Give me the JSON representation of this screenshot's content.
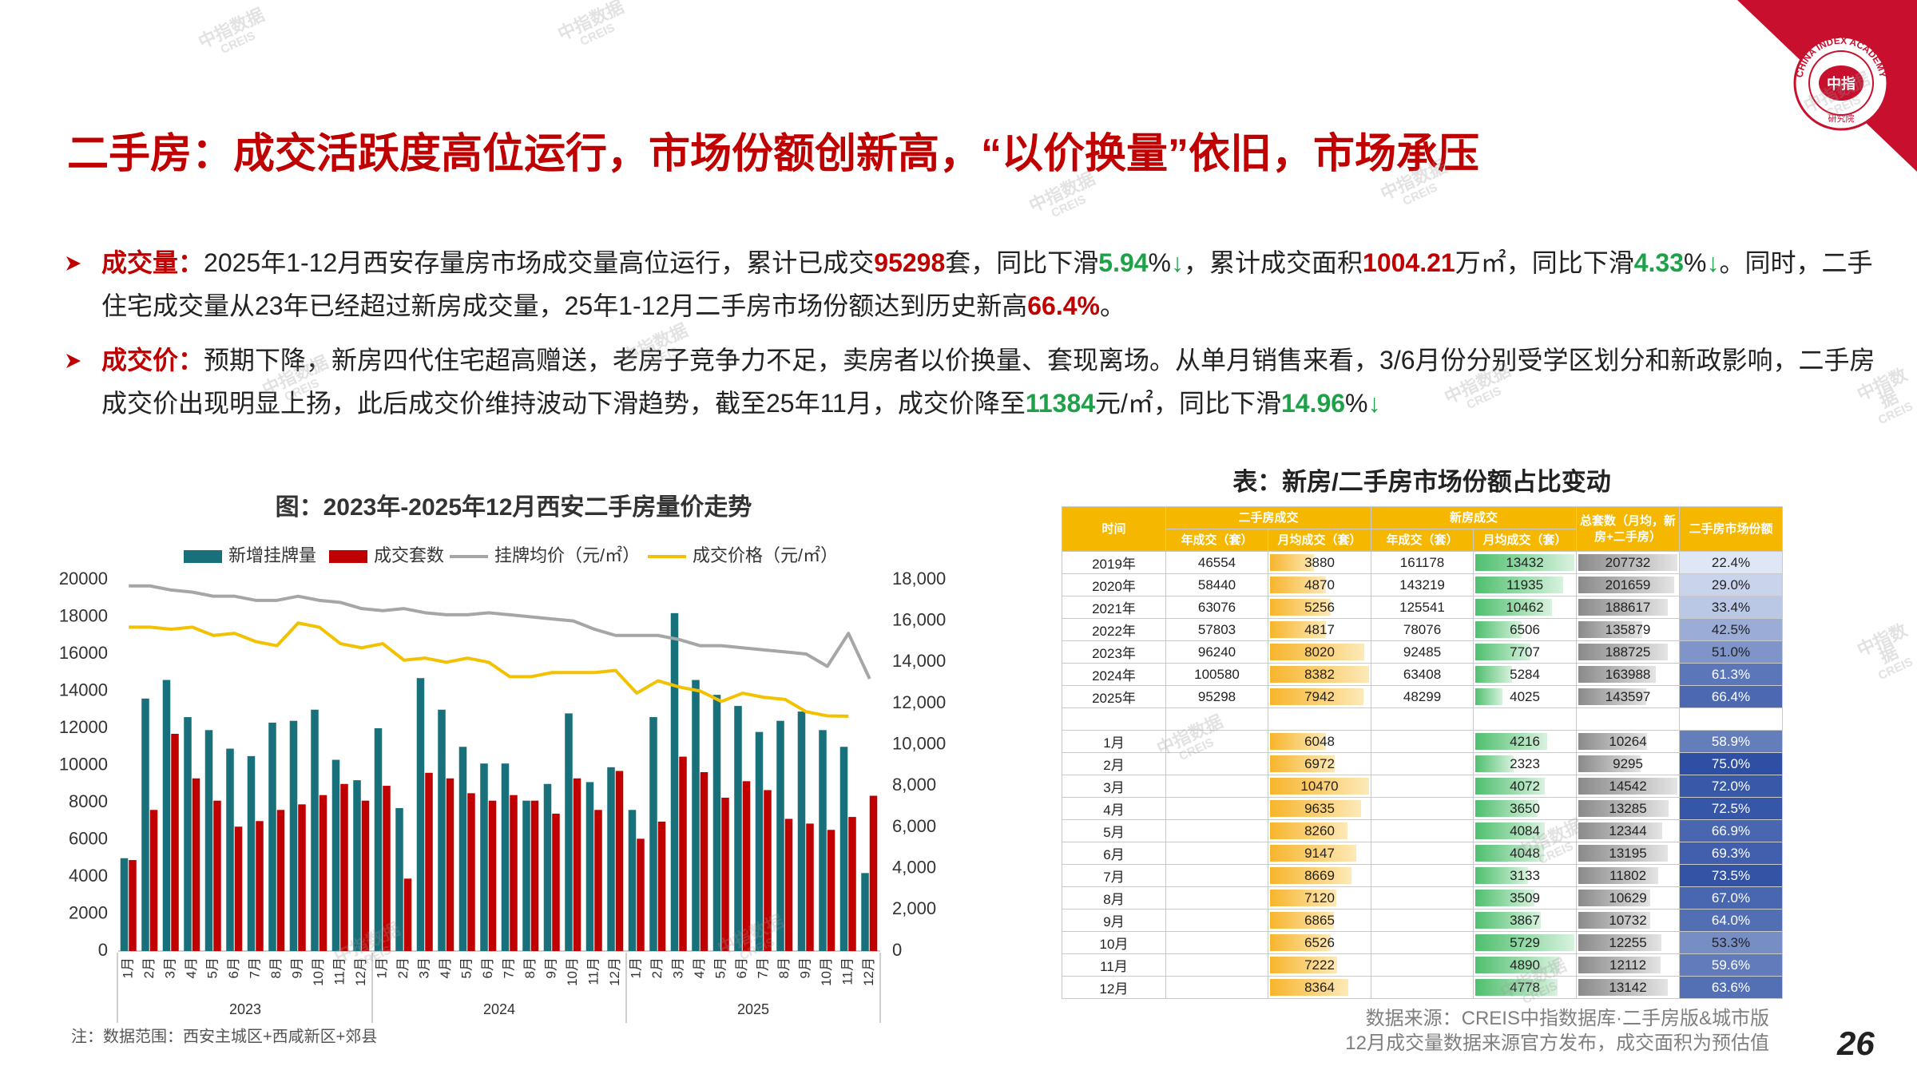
{
  "header": {
    "title": "二手房：成交活跃度高位运行，市场份额创新高，“以价换量”依旧，市场承压"
  },
  "logo": {
    "mark": "中指",
    "ring": "CHINA INDEX ACADEMY",
    "sub": "研究院"
  },
  "watermark": [
    "中指数据",
    "CREIS"
  ],
  "bullets": [
    {
      "label": "成交量：",
      "segments": [
        {
          "text": "2025年1-12月西安存量房市场成交量高位运行，累计已成交"
        },
        {
          "text": "95298",
          "emphasis": "red"
        },
        {
          "text": "套，同比下滑"
        },
        {
          "text": "5.94",
          "emphasis": "green"
        },
        {
          "text": "%"
        },
        {
          "text": "↓",
          "emphasis": "green"
        },
        {
          "text": "，累计成交面积"
        },
        {
          "text": "1004.21",
          "emphasis": "red"
        },
        {
          "text": "万㎡，同比下滑"
        },
        {
          "text": "4.33",
          "emphasis": "green"
        },
        {
          "text": "%"
        },
        {
          "text": "↓",
          "emphasis": "green"
        },
        {
          "text": "。同时，二手住宅成交量从23年已经超过新房成交量，25年1-12月二手房市场份额达到历史新高"
        },
        {
          "text": "66.4%",
          "emphasis": "red"
        },
        {
          "text": "。"
        }
      ]
    },
    {
      "label": "成交价：",
      "segments": [
        {
          "text": "预期下降，新房四代住宅超高赠送，老房子竞争力不足，卖房者以价换量、套现离场。从单月销售来看，3/6月份分别受学区划分和新政影响，二手房成交价出现明显上扬，此后成交价维持波动下滑趋势，截至25年11月，成交价降至"
        },
        {
          "text": "11384",
          "emphasis": "green"
        },
        {
          "text": "元/㎡，同比下滑"
        },
        {
          "text": "14.96",
          "emphasis": "green"
        },
        {
          "text": "%"
        },
        {
          "text": "↓",
          "emphasis": "green"
        }
      ]
    }
  ],
  "chart_data": {
    "type": "combo",
    "title": "图：2023年-2025年12月西安二手房量价走势",
    "categories": [
      "1月",
      "2月",
      "3月",
      "4月",
      "5月",
      "6月",
      "7月",
      "8月",
      "9月",
      "10月",
      "11月",
      "12月",
      "1月",
      "2月",
      "3月",
      "4月",
      "5月",
      "6月",
      "7月",
      "8月",
      "9月",
      "10月",
      "11月",
      "12月",
      "1月",
      "2月",
      "3月",
      "4月",
      "5月",
      "6月",
      "7月",
      "8月",
      "9月",
      "10月",
      "11月",
      "12月"
    ],
    "x_groups": [
      "2023",
      "2024",
      "2025"
    ],
    "ylim": [
      0,
      20000
    ],
    "yticks": [
      0,
      2000,
      4000,
      6000,
      8000,
      10000,
      12000,
      14000,
      16000,
      18000,
      20000
    ],
    "y2lim": [
      0,
      18000
    ],
    "y2ticks": [
      0,
      {
        "value": 2000,
        "label": "2,000"
      },
      {
        "value": 4000,
        "label": "4,000"
      },
      {
        "value": 6000,
        "label": "6,000"
      },
      {
        "value": 8000,
        "label": "8,000"
      },
      {
        "value": 10000,
        "label": "10,000"
      },
      {
        "value": 12000,
        "label": "12,000"
      },
      {
        "value": 14000,
        "label": "14,000"
      },
      {
        "value": 16000,
        "label": "16,000"
      },
      {
        "value": 18000,
        "label": "18,000"
      }
    ],
    "grid": false,
    "series": [
      {
        "name": "新增挂牌量",
        "type": "bar",
        "color": "#17707a",
        "values": [
          5000,
          13600,
          14600,
          12600,
          11900,
          10900,
          10500,
          12300,
          12400,
          13000,
          10300,
          9200,
          12000,
          7700,
          14700,
          13000,
          11000,
          10100,
          10100,
          8100,
          9000,
          12800,
          9100,
          9900,
          7600,
          12600,
          18200,
          14600,
          13800,
          13200,
          11800,
          12400,
          12900,
          11900,
          11000,
          4200
        ]
      },
      {
        "name": "成交套数",
        "type": "bar",
        "color": "#c00000",
        "values": [
          4900,
          7600,
          11700,
          9300,
          8100,
          6700,
          7000,
          7600,
          7900,
          8400,
          9000,
          8100,
          8900,
          3900,
          9600,
          9300,
          8500,
          8100,
          8400,
          8100,
          7400,
          9300,
          7600,
          9700,
          6048,
          6972,
          10470,
          9635,
          8260,
          9147,
          8669,
          7120,
          6865,
          6526,
          7222,
          8364
        ]
      },
      {
        "name": "挂牌均价（元/㎡）",
        "type": "line",
        "axis": "y2",
        "color": "#a6a6a6",
        "values": [
          17700,
          17700,
          17500,
          17400,
          17200,
          17200,
          17000,
          17000,
          17200,
          17000,
          16900,
          16600,
          16500,
          16600,
          16400,
          16300,
          16300,
          16400,
          16300,
          16200,
          16100,
          16000,
          15600,
          15300,
          15300,
          15300,
          15100,
          14800,
          14800,
          14700,
          14600,
          14500,
          14400,
          13800,
          15400,
          13200
        ]
      },
      {
        "name": "成交价格（元/㎡）",
        "type": "line",
        "axis": "y2",
        "color": "#f2c200",
        "values": [
          15700,
          15700,
          15600,
          15700,
          15300,
          15400,
          15000,
          14800,
          15900,
          15700,
          14900,
          14700,
          14900,
          14100,
          14200,
          14000,
          14200,
          14000,
          13300,
          13300,
          13500,
          13500,
          13500,
          13600,
          12500,
          13100,
          12800,
          12600,
          12100,
          12500,
          12300,
          12200,
          11600,
          11400,
          11384,
          null
        ]
      }
    ],
    "note": "注：数据范围：西安主城区+西咸新区+郊县"
  },
  "table": {
    "title": "表：新房/二手房市场份额占比变动",
    "header": {
      "time": "时间",
      "second": "二手房成交",
      "new": "新房成交",
      "total": "总套数（月均，新房+二手房）",
      "share": "二手房市场份额",
      "sub": [
        "年成交（套）",
        "月均成交（套）",
        "年成交（套）",
        "月均成交（套）"
      ]
    },
    "year_rows": [
      [
        "2019年",
        46554,
        3880,
        161178,
        13432,
        207732,
        {
          "value": 22.4,
          "label": "22.4%"
        }
      ],
      [
        "2020年",
        58440,
        4870,
        143219,
        11935,
        201659,
        {
          "value": 29.0,
          "label": "29.0%"
        }
      ],
      [
        "2021年",
        63076,
        5256,
        125541,
        10462,
        188617,
        {
          "value": 33.4,
          "label": "33.4%"
        }
      ],
      [
        "2022年",
        57803,
        4817,
        78076,
        6506,
        135879,
        {
          "value": 42.5,
          "label": "42.5%"
        }
      ],
      [
        "2023年",
        96240,
        8020,
        92485,
        7707,
        188725,
        {
          "value": 51.0,
          "label": "51.0%"
        }
      ],
      [
        "2024年",
        100580,
        8382,
        63408,
        5284,
        163988,
        {
          "value": 61.3,
          "label": "61.3%"
        }
      ],
      [
        "2025年",
        95298,
        7942,
        48299,
        4025,
        143597,
        {
          "value": 66.4,
          "label": "66.4%"
        }
      ]
    ],
    "month_rows": [
      [
        "1月",
        6048,
        4216,
        10264,
        {
          "value": 58.9,
          "label": "58.9%"
        }
      ],
      [
        "2月",
        6972,
        2323,
        9295,
        {
          "value": 75.0,
          "label": "75.0%"
        }
      ],
      [
        "3月",
        10470,
        4072,
        14542,
        {
          "value": 72.0,
          "label": "72.0%"
        }
      ],
      [
        "4月",
        9635,
        3650,
        13285,
        {
          "value": 72.5,
          "label": "72.5%"
        }
      ],
      [
        "5月",
        8260,
        4084,
        12344,
        {
          "value": 66.9,
          "label": "66.9%"
        }
      ],
      [
        "6月",
        9147,
        4048,
        13195,
        {
          "value": 69.3,
          "label": "69.3%"
        }
      ],
      [
        "7月",
        8669,
        3133,
        11802,
        {
          "value": 73.5,
          "label": "73.5%"
        }
      ],
      [
        "8月",
        7120,
        3509,
        10629,
        {
          "value": 67.0,
          "label": "67.0%"
        }
      ],
      [
        "9月",
        6865,
        3867,
        10732,
        {
          "value": 64.0,
          "label": "64.0%"
        }
      ],
      [
        "10月",
        6526,
        5729,
        12255,
        {
          "value": 53.3,
          "label": "53.3%"
        }
      ],
      [
        "11月",
        7222,
        4890,
        12112,
        {
          "value": 59.6,
          "label": "59.6%"
        }
      ],
      [
        "12月",
        8364,
        4778,
        13142,
        {
          "value": 63.6,
          "label": "63.6%"
        }
      ]
    ]
  },
  "footer": {
    "source": [
      "数据来源：CREIS中指数据库·二手房版&城市版",
      "12月成交量数据来源官方发布，成交面积为预估值"
    ],
    "page_number": 26
  }
}
